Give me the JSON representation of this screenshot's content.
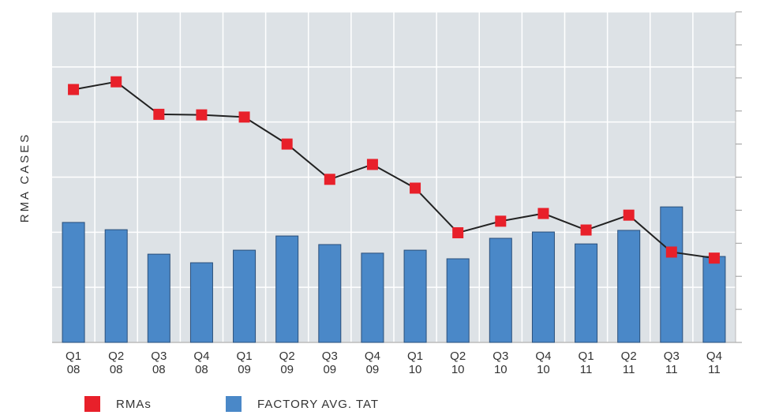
{
  "chart_data": {
    "type": "bar-line",
    "ylabel": "RMA CASES",
    "categories": [
      [
        "Q1",
        "08"
      ],
      [
        "Q2",
        "08"
      ],
      [
        "Q3",
        "08"
      ],
      [
        "Q4",
        "08"
      ],
      [
        "Q1",
        "09"
      ],
      [
        "Q2",
        "09"
      ],
      [
        "Q3",
        "09"
      ],
      [
        "Q4",
        "09"
      ],
      [
        "Q1",
        "10"
      ],
      [
        "Q2",
        "10"
      ],
      [
        "Q3",
        "10"
      ],
      [
        "Q4",
        "10"
      ],
      [
        "Q1",
        "11"
      ],
      [
        "Q2",
        "11"
      ],
      [
        "Q3",
        "11"
      ],
      [
        "Q4",
        "11"
      ]
    ],
    "series": [
      {
        "name": "RMAs",
        "type": "line",
        "color": "#e8202a",
        "axis": "y",
        "values": [
          4.59,
          4.73,
          4.14,
          4.13,
          4.09,
          3.6,
          2.96,
          3.23,
          2.8,
          1.99,
          2.2,
          2.34,
          2.04,
          2.31,
          1.64,
          1.53
        ]
      },
      {
        "name": "FACTORY AVG. TAT",
        "type": "bar",
        "color": "#4a88c8",
        "axis": "y2",
        "values": [
          3.63,
          3.41,
          2.67,
          2.41,
          2.79,
          3.22,
          2.96,
          2.7,
          2.79,
          2.53,
          3.15,
          3.34,
          2.98,
          3.39,
          4.1,
          2.6
        ]
      }
    ],
    "ylim": [
      0,
      6
    ],
    "yticks": [
      0,
      1,
      2,
      3,
      4,
      5,
      6
    ],
    "y2lim": [
      0,
      10
    ],
    "y2ticks": [
      0,
      1,
      2,
      3,
      4,
      5,
      6,
      7,
      8,
      9,
      10
    ],
    "grid": true
  }
}
